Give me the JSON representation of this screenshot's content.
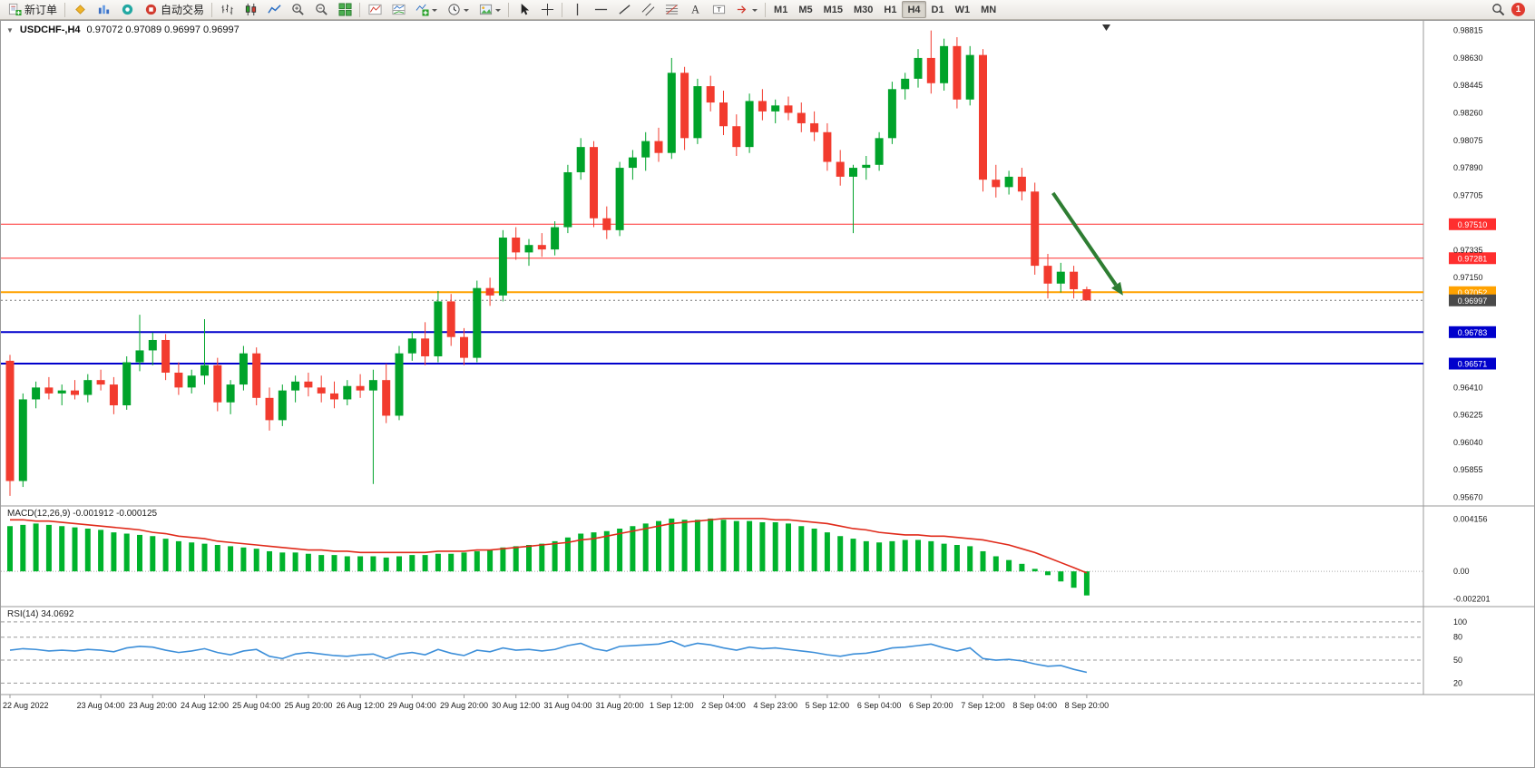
{
  "toolbar": {
    "new_order_label": "新订单",
    "auto_trading_label": "自动交易",
    "timeframes": [
      "M1",
      "M5",
      "M15",
      "M30",
      "H1",
      "H4",
      "D1",
      "W1",
      "MN"
    ],
    "active_timeframe": "H4",
    "notification_badge": "1"
  },
  "chart": {
    "title_symbol": "USDCHF-,H4",
    "title_ohlc": "0.97072 0.97089 0.96997 0.96997",
    "macd_label": "MACD(12,26,9) -0.001912 -0.000125",
    "rsi_label": "RSI(14) 34.0692"
  },
  "chart_data": {
    "type": "candlestick",
    "symbol": "USDCHF-",
    "timeframe": "H4",
    "current_bar": {
      "open": 0.97072,
      "high": 0.97089,
      "low": 0.96997,
      "close": 0.96997
    },
    "colors": {
      "up": "#00a32a",
      "down": "#f23b2e",
      "macd_hist": "#00b32c",
      "macd_signal": "#e02a1a",
      "rsi_line": "#3d8fd9",
      "resistance_line": "#ff2e2e",
      "pivot_line": "#ffa200",
      "support_line": "#0000cc",
      "current_label": "#4a4a4a",
      "axis_text": "#1a1a1a",
      "separator": "#9a9a9a",
      "arrow": "#2e7d32"
    },
    "price_axis_ticks": [
      {
        "value": 0.98815,
        "label": "0.98815"
      },
      {
        "value": 0.9863,
        "label": "0.98630"
      },
      {
        "value": 0.98445,
        "label": "0.98445"
      },
      {
        "value": 0.9826,
        "label": "0.98260"
      },
      {
        "value": 0.98075,
        "label": "0.98075"
      },
      {
        "value": 0.9789,
        "label": "0.97890"
      },
      {
        "value": 0.97705,
        "label": "0.97705"
      },
      {
        "value": 0.97335,
        "label": "0.97335"
      },
      {
        "value": 0.9715,
        "label": "0.97150"
      },
      {
        "value": 0.9641,
        "label": "0.96410"
      },
      {
        "value": 0.96225,
        "label": "0.96225"
      },
      {
        "value": 0.9604,
        "label": "0.96040"
      },
      {
        "value": 0.95855,
        "label": "0.95855"
      },
      {
        "value": 0.9567,
        "label": "0.95670"
      }
    ],
    "price_lines": [
      {
        "price": 0.9751,
        "label": "0.97510",
        "color": "#ff2e2e",
        "width": 1
      },
      {
        "price": 0.97281,
        "label": "0.97281",
        "color": "#ff2e2e",
        "width": 1
      },
      {
        "price": 0.97052,
        "label": "0.97052",
        "color": "#ffa200",
        "width": 2
      },
      {
        "price": 0.96783,
        "label": "0.96783",
        "color": "#0000cc",
        "width": 2
      },
      {
        "price": 0.96571,
        "label": "0.96571",
        "color": "#0000cc",
        "width": 2
      }
    ],
    "current_price": {
      "value": 0.96997,
      "label": "0.96997"
    },
    "candles": [
      [
        0.9659,
        0.9663,
        0.9568,
        0.9578
      ],
      [
        0.9578,
        0.9637,
        0.9574,
        0.9633
      ],
      [
        0.9633,
        0.9645,
        0.9627,
        0.9641
      ],
      [
        0.9641,
        0.9648,
        0.9633,
        0.9637
      ],
      [
        0.9637,
        0.9643,
        0.9629,
        0.9639
      ],
      [
        0.9639,
        0.9646,
        0.9633,
        0.9636
      ],
      [
        0.9636,
        0.965,
        0.9631,
        0.9646
      ],
      [
        0.9646,
        0.9653,
        0.9639,
        0.9643
      ],
      [
        0.9643,
        0.9648,
        0.9623,
        0.9629
      ],
      [
        0.9629,
        0.9662,
        0.9626,
        0.9658
      ],
      [
        0.9658,
        0.969,
        0.9652,
        0.9666
      ],
      [
        0.9666,
        0.9678,
        0.9656,
        0.9673
      ],
      [
        0.9673,
        0.9677,
        0.9646,
        0.9651
      ],
      [
        0.9651,
        0.9658,
        0.9636,
        0.9641
      ],
      [
        0.9641,
        0.9653,
        0.9637,
        0.9649
      ],
      [
        0.9649,
        0.9687,
        0.9643,
        0.9656
      ],
      [
        0.9656,
        0.9661,
        0.9625,
        0.9631
      ],
      [
        0.9631,
        0.9646,
        0.9623,
        0.9643
      ],
      [
        0.9643,
        0.9669,
        0.9639,
        0.9664
      ],
      [
        0.9664,
        0.9668,
        0.9629,
        0.9634
      ],
      [
        0.9634,
        0.9641,
        0.9612,
        0.9619
      ],
      [
        0.9619,
        0.9643,
        0.9615,
        0.9639
      ],
      [
        0.9639,
        0.9649,
        0.9631,
        0.9645
      ],
      [
        0.9645,
        0.9651,
        0.9635,
        0.9641
      ],
      [
        0.9641,
        0.9649,
        0.9631,
        0.9637
      ],
      [
        0.9637,
        0.9645,
        0.9627,
        0.9633
      ],
      [
        0.9633,
        0.9646,
        0.9629,
        0.9642
      ],
      [
        0.9642,
        0.965,
        0.9634,
        0.9639
      ],
      [
        0.9639,
        0.9653,
        0.9576,
        0.9646
      ],
      [
        0.9646,
        0.9657,
        0.9617,
        0.9622
      ],
      [
        0.9622,
        0.9669,
        0.9619,
        0.9664
      ],
      [
        0.9664,
        0.9679,
        0.9659,
        0.9674
      ],
      [
        0.9674,
        0.9685,
        0.9656,
        0.9662
      ],
      [
        0.9662,
        0.9706,
        0.9658,
        0.9699
      ],
      [
        0.9699,
        0.9704,
        0.9669,
        0.9675
      ],
      [
        0.9675,
        0.9681,
        0.9656,
        0.9661
      ],
      [
        0.9661,
        0.9713,
        0.9658,
        0.9708
      ],
      [
        0.9708,
        0.9715,
        0.9696,
        0.9703
      ],
      [
        0.9703,
        0.9747,
        0.9699,
        0.9742
      ],
      [
        0.9742,
        0.9749,
        0.9727,
        0.9732
      ],
      [
        0.9732,
        0.9741,
        0.9723,
        0.9737
      ],
      [
        0.9737,
        0.9745,
        0.9729,
        0.9734
      ],
      [
        0.9734,
        0.9753,
        0.973,
        0.9749
      ],
      [
        0.9749,
        0.9791,
        0.9745,
        0.9786
      ],
      [
        0.9786,
        0.9809,
        0.9781,
        0.9803
      ],
      [
        0.9803,
        0.9807,
        0.9749,
        0.9755
      ],
      [
        0.9755,
        0.9763,
        0.9741,
        0.9747
      ],
      [
        0.9747,
        0.9793,
        0.9743,
        0.9789
      ],
      [
        0.9789,
        0.9801,
        0.9781,
        0.9796
      ],
      [
        0.9796,
        0.9813,
        0.9787,
        0.9807
      ],
      [
        0.9807,
        0.9816,
        0.9793,
        0.9799
      ],
      [
        0.9799,
        0.9863,
        0.9795,
        0.9853
      ],
      [
        0.9853,
        0.9857,
        0.9801,
        0.9809
      ],
      [
        0.9809,
        0.9849,
        0.9805,
        0.9844
      ],
      [
        0.9844,
        0.9851,
        0.9827,
        0.9833
      ],
      [
        0.9833,
        0.9841,
        0.9811,
        0.9817
      ],
      [
        0.9817,
        0.9825,
        0.9797,
        0.9803
      ],
      [
        0.9803,
        0.9839,
        0.9799,
        0.9834
      ],
      [
        0.9834,
        0.9842,
        0.9821,
        0.9827
      ],
      [
        0.9827,
        0.9835,
        0.9819,
        0.9831
      ],
      [
        0.9831,
        0.9837,
        0.9821,
        0.9826
      ],
      [
        0.9826,
        0.9833,
        0.9813,
        0.9819
      ],
      [
        0.9819,
        0.9827,
        0.9807,
        0.9813
      ],
      [
        0.9813,
        0.9819,
        0.9787,
        0.9793
      ],
      [
        0.9793,
        0.9801,
        0.9777,
        0.9783
      ],
      [
        0.9783,
        0.9791,
        0.9745,
        0.9789
      ],
      [
        0.9789,
        0.9797,
        0.9781,
        0.9791
      ],
      [
        0.9791,
        0.9813,
        0.9787,
        0.9809
      ],
      [
        0.9809,
        0.9847,
        0.9805,
        0.9842
      ],
      [
        0.9842,
        0.9853,
        0.9835,
        0.9849
      ],
      [
        0.9849,
        0.9869,
        0.9843,
        0.9863
      ],
      [
        0.9863,
        0.98815,
        0.9839,
        0.9846
      ],
      [
        0.9846,
        0.9876,
        0.9841,
        0.9871
      ],
      [
        0.9871,
        0.9877,
        0.9829,
        0.9835
      ],
      [
        0.9835,
        0.9871,
        0.9831,
        0.9865
      ],
      [
        0.9865,
        0.9869,
        0.9773,
        0.9781
      ],
      [
        0.9781,
        0.9791,
        0.9769,
        0.9776
      ],
      [
        0.9776,
        0.9787,
        0.9771,
        0.9783
      ],
      [
        0.9783,
        0.9789,
        0.9767,
        0.9773
      ],
      [
        0.9773,
        0.9779,
        0.9717,
        0.9723
      ],
      [
        0.9723,
        0.9731,
        0.9701,
        0.9711
      ],
      [
        0.9711,
        0.9725,
        0.9705,
        0.9719
      ],
      [
        0.9719,
        0.9723,
        0.9701,
        0.97072
      ],
      [
        0.97072,
        0.97089,
        0.96997,
        0.96997
      ]
    ],
    "time_labels": [
      {
        "bar": 0,
        "label": "22 Aug 2022"
      },
      {
        "bar": 7,
        "label": "23 Aug 04:00"
      },
      {
        "bar": 11,
        "label": "23 Aug 20:00"
      },
      {
        "bar": 15,
        "label": "24 Aug 12:00"
      },
      {
        "bar": 19,
        "label": "25 Aug 04:00"
      },
      {
        "bar": 23,
        "label": "25 Aug 20:00"
      },
      {
        "bar": 27,
        "label": "26 Aug 12:00"
      },
      {
        "bar": 31,
        "label": "29 Aug 04:00"
      },
      {
        "bar": 35,
        "label": "29 Aug 20:00"
      },
      {
        "bar": 39,
        "label": "30 Aug 12:00"
      },
      {
        "bar": 43,
        "label": "31 Aug 04:00"
      },
      {
        "bar": 47,
        "label": "31 Aug 20:00"
      },
      {
        "bar": 51,
        "label": "1 Sep 12:00"
      },
      {
        "bar": 55,
        "label": "2 Sep 04:00"
      },
      {
        "bar": 59,
        "label": "4 Sep 23:00"
      },
      {
        "bar": 63,
        "label": "5 Sep 12:00"
      },
      {
        "bar": 67,
        "label": "6 Sep 04:00"
      },
      {
        "bar": 71,
        "label": "6 Sep 20:00"
      },
      {
        "bar": 75,
        "label": "7 Sep 12:00"
      },
      {
        "bar": 79,
        "label": "8 Sep 04:00"
      },
      {
        "bar": 83,
        "label": "8 Sep 20:00"
      }
    ],
    "arrow": {
      "from": {
        "bar": 80.4,
        "price": 0.9772
      },
      "to": {
        "bar": 85.8,
        "price": 0.9703
      },
      "color": "#2e7d32"
    },
    "macd": {
      "params": "12,26,9",
      "value": -0.001912,
      "signal_value": -0.000125,
      "axis_ticks": [
        {
          "value": 0.004156,
          "label": "0.004156"
        },
        {
          "value": 0,
          "label": "0.00"
        },
        {
          "value": -0.002201,
          "label": "-0.002201"
        }
      ],
      "histogram": [
        0.0036,
        0.0037,
        0.0038,
        0.0037,
        0.0036,
        0.0035,
        0.0034,
        0.0033,
        0.0031,
        0.003,
        0.0029,
        0.0028,
        0.0026,
        0.0024,
        0.0023,
        0.0022,
        0.0021,
        0.002,
        0.0019,
        0.0018,
        0.0016,
        0.0015,
        0.0015,
        0.0014,
        0.0013,
        0.0013,
        0.0012,
        0.0012,
        0.0012,
        0.0011,
        0.0012,
        0.0013,
        0.0013,
        0.0014,
        0.0014,
        0.0015,
        0.0016,
        0.0017,
        0.0019,
        0.002,
        0.0021,
        0.0022,
        0.0024,
        0.0027,
        0.003,
        0.0031,
        0.0032,
        0.0034,
        0.0036,
        0.0038,
        0.004,
        0.0042,
        0.0041,
        0.0041,
        0.0042,
        0.0041,
        0.004,
        0.004,
        0.0039,
        0.0039,
        0.0038,
        0.0036,
        0.0034,
        0.0031,
        0.0028,
        0.0026,
        0.0024,
        0.0023,
        0.0024,
        0.0025,
        0.0025,
        0.0024,
        0.0022,
        0.0021,
        0.002,
        0.0016,
        0.0012,
        0.0009,
        0.0006,
        0.0002,
        -0.0003,
        -0.0008,
        -0.0013,
        -0.001912
      ],
      "signal": [
        0.0041,
        0.0041,
        0.004,
        0.004,
        0.0039,
        0.0038,
        0.0037,
        0.0036,
        0.0035,
        0.0034,
        0.0033,
        0.0031,
        0.003,
        0.0028,
        0.0027,
        0.0026,
        0.0024,
        0.0023,
        0.0022,
        0.0021,
        0.002,
        0.0019,
        0.0018,
        0.0017,
        0.0017,
        0.0016,
        0.0016,
        0.0015,
        0.0015,
        0.0015,
        0.0015,
        0.0015,
        0.0015,
        0.0016,
        0.0016,
        0.0016,
        0.0017,
        0.0017,
        0.0018,
        0.0019,
        0.002,
        0.0021,
        0.0022,
        0.0023,
        0.0025,
        0.0026,
        0.0028,
        0.003,
        0.0032,
        0.0034,
        0.0036,
        0.0038,
        0.0039,
        0.004,
        0.0041,
        0.0042,
        0.0042,
        0.0042,
        0.0042,
        0.0041,
        0.0041,
        0.004,
        0.0039,
        0.0038,
        0.0036,
        0.0034,
        0.0033,
        0.0031,
        0.003,
        0.0029,
        0.0029,
        0.0028,
        0.0028,
        0.0027,
        0.0026,
        0.0025,
        0.0023,
        0.0021,
        0.0018,
        0.0015,
        0.0011,
        0.0007,
        0.0003,
        -0.000125
      ]
    },
    "rsi": {
      "period": 14,
      "value": 34.0692,
      "levels": [
        100,
        80,
        50,
        20
      ],
      "axis_ticks": [
        {
          "value": 100,
          "label": "100"
        },
        {
          "value": 80,
          "label": "80"
        },
        {
          "value": 50,
          "label": "50"
        },
        {
          "value": 20,
          "label": "20"
        }
      ],
      "values": [
        63,
        65,
        64,
        62,
        63,
        62,
        64,
        63,
        61,
        66,
        68,
        67,
        63,
        60,
        62,
        65,
        60,
        57,
        62,
        64,
        55,
        52,
        58,
        60,
        58,
        56,
        55,
        57,
        58,
        52,
        58,
        60,
        57,
        64,
        59,
        56,
        63,
        61,
        66,
        63,
        64,
        62,
        64,
        69,
        72,
        65,
        62,
        68,
        69,
        70,
        71,
        75,
        68,
        72,
        70,
        66,
        63,
        67,
        65,
        66,
        64,
        62,
        60,
        57,
        55,
        58,
        59,
        62,
        66,
        67,
        69,
        71,
        66,
        62,
        66,
        52,
        50,
        51,
        49,
        45,
        42,
        43,
        38,
        34.0692
      ]
    }
  }
}
